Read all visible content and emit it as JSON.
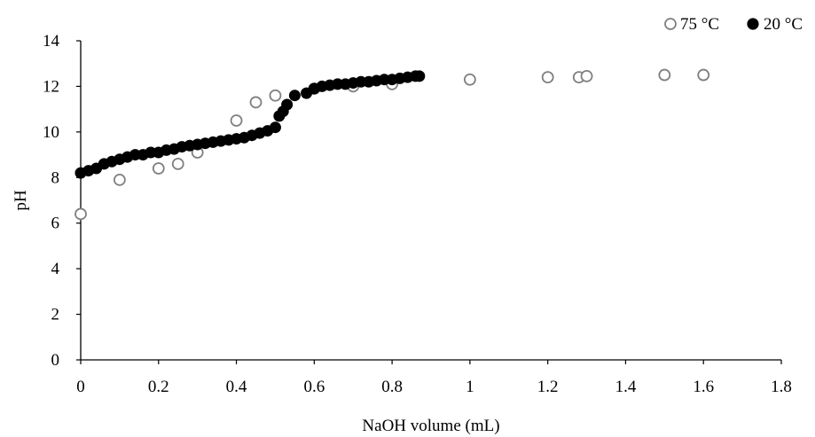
{
  "chart_data": {
    "type": "scatter",
    "title": "",
    "xlabel": "NaOH volume (mL)",
    "ylabel": "pH",
    "xlim": [
      0,
      1.8
    ],
    "ylim": [
      0,
      14
    ],
    "x_ticks": [
      0,
      0.2,
      0.4,
      0.6,
      0.8,
      1,
      1.2,
      1.4,
      1.6,
      1.8
    ],
    "x_tick_labels": [
      "0",
      "0.2",
      "0.4",
      "0.6",
      "0.8",
      "1",
      "1.2",
      "1.4",
      "1.6",
      "1.8"
    ],
    "y_ticks": [
      0,
      2,
      4,
      6,
      8,
      10,
      12,
      14
    ],
    "y_tick_labels": [
      "0",
      "2",
      "4",
      "6",
      "8",
      "10",
      "12",
      "14"
    ],
    "grid": false,
    "legend_position": "top-right",
    "series": [
      {
        "name": "75 °C",
        "marker": "open-circle",
        "color": "#808080",
        "points": [
          [
            0,
            6.4
          ],
          [
            0.1,
            7.9
          ],
          [
            0.2,
            8.4
          ],
          [
            0.25,
            8.6
          ],
          [
            0.3,
            9.1
          ],
          [
            0.4,
            10.5
          ],
          [
            0.45,
            11.3
          ],
          [
            0.5,
            11.6
          ],
          [
            0.6,
            11.9
          ],
          [
            0.7,
            12.0
          ],
          [
            0.8,
            12.1
          ],
          [
            1.0,
            12.3
          ],
          [
            1.2,
            12.4
          ],
          [
            1.28,
            12.4
          ],
          [
            1.3,
            12.45
          ],
          [
            1.5,
            12.5
          ],
          [
            1.6,
            12.5
          ]
        ]
      },
      {
        "name": "20 °C",
        "marker": "filled-circle",
        "color": "#000000",
        "points": [
          [
            0,
            8.2
          ],
          [
            0.02,
            8.3
          ],
          [
            0.04,
            8.4
          ],
          [
            0.06,
            8.6
          ],
          [
            0.08,
            8.7
          ],
          [
            0.1,
            8.8
          ],
          [
            0.12,
            8.9
          ],
          [
            0.14,
            9.0
          ],
          [
            0.16,
            9.0
          ],
          [
            0.18,
            9.1
          ],
          [
            0.2,
            9.1
          ],
          [
            0.22,
            9.2
          ],
          [
            0.24,
            9.25
          ],
          [
            0.26,
            9.35
          ],
          [
            0.28,
            9.4
          ],
          [
            0.3,
            9.45
          ],
          [
            0.32,
            9.5
          ],
          [
            0.34,
            9.55
          ],
          [
            0.36,
            9.6
          ],
          [
            0.38,
            9.65
          ],
          [
            0.4,
            9.7
          ],
          [
            0.42,
            9.75
          ],
          [
            0.44,
            9.85
          ],
          [
            0.46,
            9.95
          ],
          [
            0.48,
            10.05
          ],
          [
            0.5,
            10.2
          ],
          [
            0.51,
            10.7
          ],
          [
            0.52,
            10.9
          ],
          [
            0.53,
            11.2
          ],
          [
            0.55,
            11.6
          ],
          [
            0.58,
            11.7
          ],
          [
            0.6,
            11.9
          ],
          [
            0.62,
            12.0
          ],
          [
            0.64,
            12.05
          ],
          [
            0.66,
            12.1
          ],
          [
            0.68,
            12.1
          ],
          [
            0.7,
            12.15
          ],
          [
            0.72,
            12.2
          ],
          [
            0.74,
            12.2
          ],
          [
            0.76,
            12.25
          ],
          [
            0.78,
            12.3
          ],
          [
            0.8,
            12.3
          ],
          [
            0.82,
            12.35
          ],
          [
            0.84,
            12.4
          ],
          [
            0.86,
            12.45
          ],
          [
            0.87,
            12.45
          ]
        ]
      }
    ]
  }
}
